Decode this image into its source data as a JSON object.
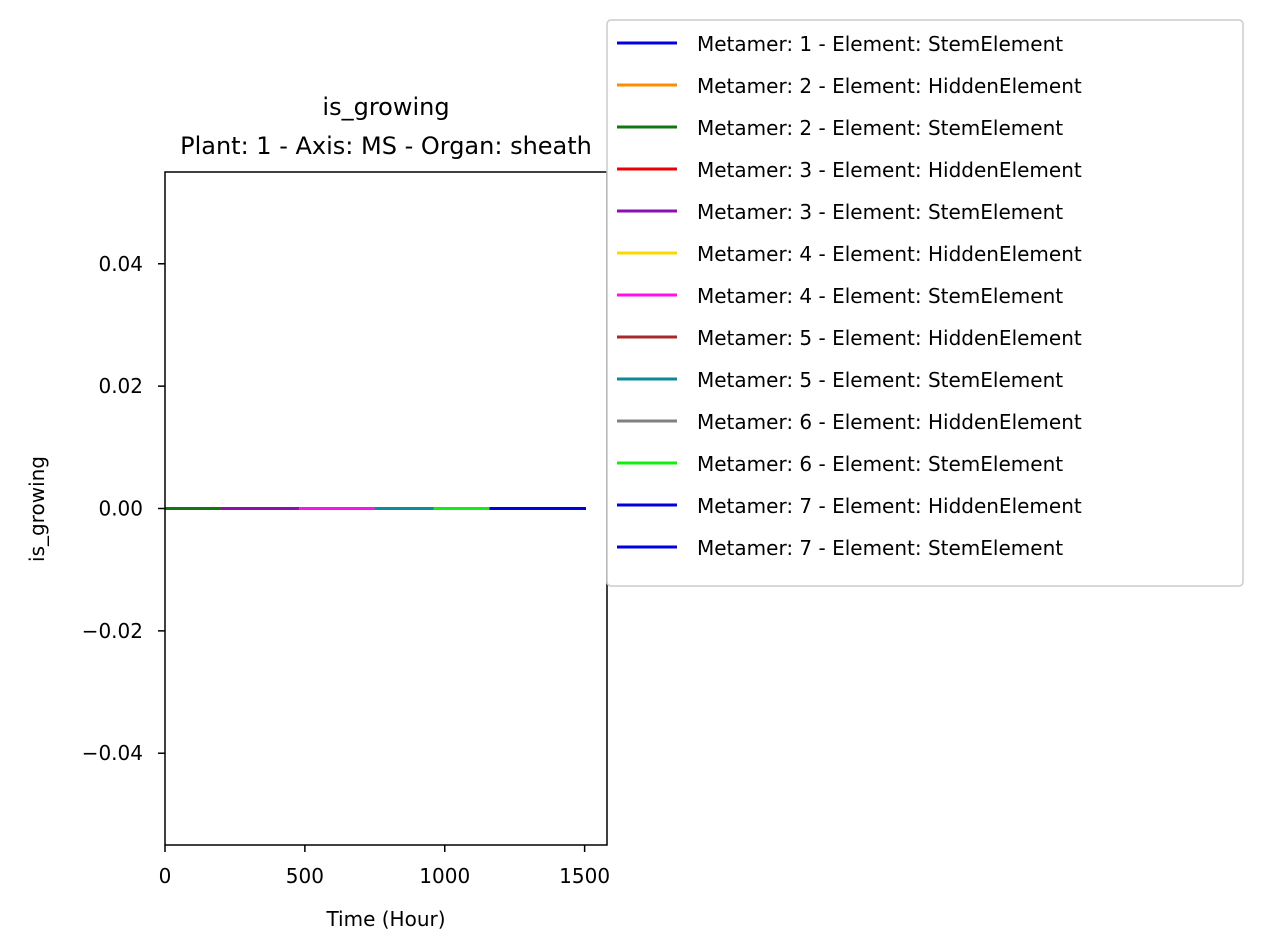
{
  "chart_data": {
    "type": "line",
    "title": "is_growing",
    "subtitle": "Plant: 1 - Axis: MS - Organ: sheath",
    "xlabel": "Time (Hour)",
    "ylabel": "is_growing",
    "xlim": [
      0,
      1580
    ],
    "ylim": [
      -0.055,
      0.055
    ],
    "xticks": [
      0,
      500,
      1000,
      1500
    ],
    "xtick_labels": [
      "0",
      "500",
      "1000",
      "1500"
    ],
    "yticks": [
      0.04,
      0.02,
      0.0,
      -0.02,
      -0.04
    ],
    "ytick_labels": [
      "0.04",
      "0.02",
      "0.00",
      "−0.02",
      "−0.04"
    ],
    "grid": false,
    "legend_position": "upper-right, outside plot",
    "series": [
      {
        "name": "Metamer: 1 - Element: StemElement",
        "color": "#0000dd",
        "x": [
          0,
          200
        ],
        "y": [
          0,
          0
        ]
      },
      {
        "name": "Metamer: 2 - Element: HiddenElement",
        "color": "#ff8c00",
        "x": [
          0,
          200
        ],
        "y": [
          0,
          0
        ]
      },
      {
        "name": "Metamer: 2 - Element: StemElement",
        "color": "#117711",
        "x": [
          0,
          200
        ],
        "y": [
          0,
          0
        ]
      },
      {
        "name": "Metamer: 3 - Element: HiddenElement",
        "color": "#ee0000",
        "x": [
          200,
          480
        ],
        "y": [
          0,
          0
        ]
      },
      {
        "name": "Metamer: 3 - Element: StemElement",
        "color": "#8b10b0",
        "x": [
          200,
          480
        ],
        "y": [
          0,
          0
        ]
      },
      {
        "name": "Metamer: 4 - Element: HiddenElement",
        "color": "#ffd700",
        "x": [
          480,
          750
        ],
        "y": [
          0,
          0
        ]
      },
      {
        "name": "Metamer: 4 - Element: StemElement",
        "color": "#ff11ee",
        "x": [
          480,
          750
        ],
        "y": [
          0,
          0
        ]
      },
      {
        "name": "Metamer: 5 - Element: HiddenElement",
        "color": "#a52a2a",
        "x": [
          750,
          960
        ],
        "y": [
          0,
          0
        ]
      },
      {
        "name": "Metamer: 5 - Element: StemElement",
        "color": "#0a8a9a",
        "x": [
          750,
          960
        ],
        "y": [
          0,
          0
        ]
      },
      {
        "name": "Metamer: 6 - Element: HiddenElement",
        "color": "#808080",
        "x": [
          960,
          1160
        ],
        "y": [
          0,
          0
        ]
      },
      {
        "name": "Metamer: 6 - Element: StemElement",
        "color": "#11ee11",
        "x": [
          960,
          1160
        ],
        "y": [
          0,
          0
        ]
      },
      {
        "name": "Metamer: 7 - Element: HiddenElement",
        "color": "#0000dd",
        "x": [
          1160,
          1505
        ],
        "y": [
          0,
          0
        ]
      },
      {
        "name": "Metamer: 7 - Element: StemElement",
        "color": "#0000dd",
        "x": [
          1160,
          1505
        ],
        "y": [
          0,
          0
        ]
      }
    ]
  }
}
